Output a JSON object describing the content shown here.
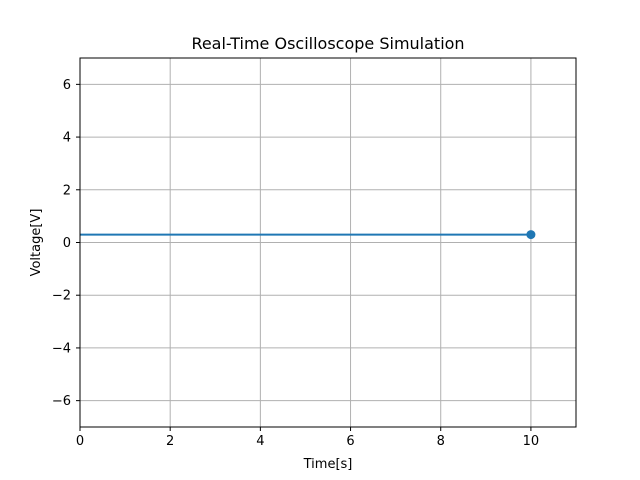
{
  "chart_data": {
    "type": "line",
    "title": "Real-Time Oscilloscope Simulation",
    "xlabel": "Time[s]",
    "ylabel": "Voltage[V]",
    "xlim": [
      0,
      11
    ],
    "ylim": [
      -7,
      7
    ],
    "xticks": [
      0,
      2,
      4,
      6,
      8,
      10
    ],
    "yticks": [
      -6,
      -4,
      -2,
      0,
      2,
      4,
      6
    ],
    "xtick_labels": [
      "0",
      "2",
      "4",
      "6",
      "8",
      "10"
    ],
    "ytick_labels": [
      "−6",
      "−4",
      "−2",
      "0",
      "2",
      "4",
      "6"
    ],
    "grid": true,
    "series": [
      {
        "x": [
          0,
          10
        ],
        "y": [
          0.3,
          0.3
        ],
        "color": "#1f77b4",
        "end_marker": true
      }
    ]
  }
}
